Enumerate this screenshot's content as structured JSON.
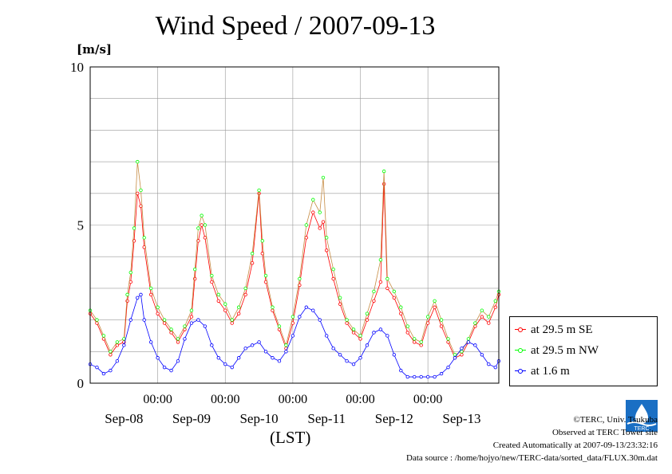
{
  "header": {
    "title": "Wind Speed / 2007-09-13",
    "unit": "[m/s]"
  },
  "axes": {
    "xlabel": "(LST)"
  },
  "legend": [
    {
      "label": "at 29.5 m SE",
      "color": "#ff0000"
    },
    {
      "label": "at 29.5 m NW",
      "color": "#00ff00"
    },
    {
      "label": "at 1.6 m",
      "color": "#0000ff"
    }
  ],
  "credits": {
    "line1": "©TERC, Univ. Tsukuba",
    "line2": "Observed at TERC Tower site",
    "line3": "Created Automatically at 2007-09-13/23:32:16",
    "line4": "Data source : /home/hojyo/new/TERC-data/sorted_data/FLUX.30m.dat"
  },
  "logo": {
    "text": "TERC",
    "icon": "terc-logo-icon"
  },
  "chart_data": {
    "type": "line",
    "ylim": [
      0,
      10
    ],
    "yticks": [
      0,
      5,
      10
    ],
    "xlim": [
      0,
      6.05
    ],
    "time_ticks": [
      "00:00",
      "00:00",
      "00:00",
      "00:00",
      "00:00"
    ],
    "time_tick_positions": [
      1,
      2,
      3,
      4,
      5
    ],
    "date_ticks": [
      "Sep-08",
      "Sep-09",
      "Sep-10",
      "Sep-11",
      "Sep-12",
      "Sep-13"
    ],
    "date_tick_positions": [
      0.5,
      1.5,
      2.5,
      3.5,
      4.5,
      5.5
    ],
    "grid": true,
    "legend_position": "right",
    "x_units": "days from start of Sep-08 window",
    "series": [
      {
        "name": "at 29.5 m SE",
        "color": "#ff0000",
        "x": [
          0.0,
          0.1,
          0.2,
          0.3,
          0.4,
          0.5,
          0.55,
          0.6,
          0.65,
          0.7,
          0.75,
          0.8,
          0.9,
          1.0,
          1.1,
          1.2,
          1.3,
          1.4,
          1.5,
          1.55,
          1.6,
          1.65,
          1.7,
          1.8,
          1.9,
          2.0,
          2.1,
          2.2,
          2.3,
          2.4,
          2.5,
          2.55,
          2.6,
          2.7,
          2.8,
          2.9,
          3.0,
          3.1,
          3.2,
          3.3,
          3.4,
          3.45,
          3.5,
          3.6,
          3.7,
          3.8,
          3.9,
          4.0,
          4.1,
          4.2,
          4.3,
          4.35,
          4.4,
          4.5,
          4.6,
          4.7,
          4.8,
          4.9,
          5.0,
          5.1,
          5.2,
          5.3,
          5.4,
          5.5,
          5.6,
          5.7,
          5.8,
          5.9,
          6.0,
          6.05
        ],
        "values": [
          2.2,
          1.9,
          1.4,
          0.9,
          1.2,
          1.3,
          2.6,
          3.2,
          4.5,
          6.0,
          5.6,
          4.3,
          2.8,
          2.2,
          1.9,
          1.6,
          1.3,
          1.7,
          2.1,
          3.3,
          4.5,
          5.0,
          4.6,
          3.2,
          2.6,
          2.3,
          1.9,
          2.2,
          2.8,
          3.8,
          6.0,
          4.1,
          3.2,
          2.3,
          1.7,
          1.1,
          1.9,
          3.1,
          4.6,
          5.4,
          4.9,
          5.1,
          4.2,
          3.3,
          2.5,
          1.9,
          1.6,
          1.4,
          2.0,
          2.6,
          3.2,
          6.3,
          3.0,
          2.7,
          2.2,
          1.6,
          1.3,
          1.2,
          1.9,
          2.4,
          1.8,
          1.3,
          0.8,
          0.9,
          1.3,
          1.8,
          2.1,
          1.9,
          2.4,
          2.8
        ]
      },
      {
        "name": "at 29.5 m NW",
        "color": "#00ff00",
        "x": [
          0.0,
          0.1,
          0.2,
          0.3,
          0.4,
          0.5,
          0.55,
          0.6,
          0.65,
          0.7,
          0.75,
          0.8,
          0.9,
          1.0,
          1.1,
          1.2,
          1.3,
          1.4,
          1.5,
          1.55,
          1.6,
          1.65,
          1.7,
          1.8,
          1.9,
          2.0,
          2.1,
          2.2,
          2.3,
          2.4,
          2.5,
          2.55,
          2.6,
          2.7,
          2.8,
          2.9,
          3.0,
          3.1,
          3.2,
          3.3,
          3.4,
          3.45,
          3.5,
          3.6,
          3.7,
          3.8,
          3.9,
          4.0,
          4.1,
          4.2,
          4.3,
          4.35,
          4.4,
          4.5,
          4.6,
          4.7,
          4.8,
          4.9,
          5.0,
          5.1,
          5.2,
          5.3,
          5.4,
          5.5,
          5.6,
          5.7,
          5.8,
          5.9,
          6.0,
          6.05
        ],
        "values": [
          2.3,
          2.0,
          1.5,
          1.0,
          1.3,
          1.4,
          2.8,
          3.5,
          4.9,
          7.0,
          6.1,
          4.6,
          3.0,
          2.4,
          2.0,
          1.7,
          1.4,
          1.8,
          2.3,
          3.6,
          4.9,
          5.3,
          5.0,
          3.4,
          2.8,
          2.5,
          2.0,
          2.4,
          3.0,
          4.1,
          6.1,
          4.5,
          3.4,
          2.4,
          1.8,
          1.2,
          2.1,
          3.3,
          5.0,
          5.8,
          5.4,
          6.5,
          4.6,
          3.6,
          2.7,
          2.0,
          1.7,
          1.5,
          2.2,
          2.9,
          3.9,
          6.7,
          3.3,
          2.9,
          2.4,
          1.8,
          1.4,
          1.3,
          2.1,
          2.6,
          2.0,
          1.4,
          0.9,
          1.0,
          1.4,
          1.9,
          2.3,
          2.1,
          2.6,
          2.9
        ]
      },
      {
        "name": "at 1.6 m",
        "color": "#0000ff",
        "x": [
          0.0,
          0.1,
          0.2,
          0.3,
          0.4,
          0.5,
          0.6,
          0.7,
          0.75,
          0.8,
          0.9,
          1.0,
          1.1,
          1.2,
          1.3,
          1.4,
          1.5,
          1.6,
          1.7,
          1.8,
          1.9,
          2.0,
          2.1,
          2.2,
          2.3,
          2.4,
          2.5,
          2.6,
          2.7,
          2.8,
          2.9,
          3.0,
          3.1,
          3.2,
          3.3,
          3.4,
          3.5,
          3.6,
          3.7,
          3.8,
          3.9,
          4.0,
          4.1,
          4.2,
          4.3,
          4.4,
          4.5,
          4.6,
          4.7,
          4.8,
          4.9,
          5.0,
          5.1,
          5.2,
          5.3,
          5.4,
          5.5,
          5.6,
          5.7,
          5.8,
          5.9,
          6.0,
          6.05
        ],
        "values": [
          0.6,
          0.5,
          0.3,
          0.4,
          0.7,
          1.2,
          2.0,
          2.7,
          2.8,
          2.0,
          1.3,
          0.8,
          0.5,
          0.4,
          0.7,
          1.4,
          1.9,
          2.0,
          1.8,
          1.2,
          0.8,
          0.6,
          0.5,
          0.8,
          1.1,
          1.2,
          1.3,
          1.0,
          0.8,
          0.7,
          1.0,
          1.5,
          2.1,
          2.4,
          2.3,
          2.0,
          1.5,
          1.1,
          0.9,
          0.7,
          0.6,
          0.8,
          1.2,
          1.6,
          1.7,
          1.5,
          0.9,
          0.4,
          0.2,
          0.2,
          0.2,
          0.2,
          0.2,
          0.3,
          0.5,
          0.8,
          1.1,
          1.3,
          1.2,
          0.9,
          0.6,
          0.5,
          0.7
        ]
      }
    ]
  }
}
